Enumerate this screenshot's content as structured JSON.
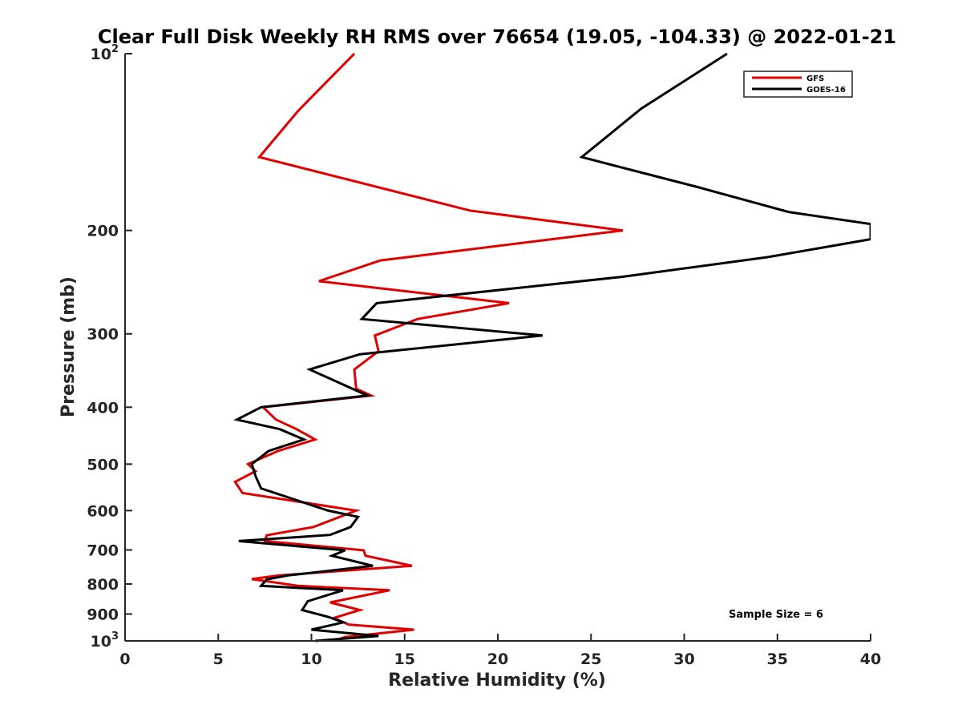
{
  "chart_data": {
    "type": "line",
    "title": "Clear Full Disk Weekly RH RMS over 76654 (19.05, -104.33) @ 2022-01-21",
    "xlabel": "Relative Humidity (%)",
    "ylabel": "Pressure (mb)",
    "xlim": [
      0,
      40
    ],
    "ylim": [
      100,
      1000
    ],
    "yscale": "log",
    "y_reversed": true,
    "xticks": [
      0,
      5,
      10,
      15,
      20,
      25,
      30,
      35,
      40
    ],
    "xtick_labels": [
      "0",
      "5",
      "10",
      "15",
      "20",
      "25",
      "30",
      "35",
      "40"
    ],
    "yticks": [
      {
        "value": 100,
        "base": "10",
        "exp": "2"
      },
      {
        "value": 200,
        "label": "200"
      },
      {
        "value": 300,
        "label": "300"
      },
      {
        "value": 400,
        "label": "400"
      },
      {
        "value": 500,
        "label": "500"
      },
      {
        "value": 600,
        "label": "600"
      },
      {
        "value": 700,
        "label": "700"
      },
      {
        "value": 800,
        "label": "800"
      },
      {
        "value": 900,
        "label": "900"
      },
      {
        "value": 1000,
        "base": "10",
        "exp": "3"
      }
    ],
    "legend_position": "top-right",
    "annotation": "Sample Size = 6",
    "series": [
      {
        "name": "GFS",
        "color": "#e00000",
        "points": [
          [
            12.3,
            100
          ],
          [
            9.3,
            125
          ],
          [
            7.2,
            150
          ],
          [
            18.5,
            185
          ],
          [
            26.7,
            200
          ],
          [
            13.7,
            225
          ],
          [
            10.4,
            244
          ],
          [
            20.6,
            266
          ],
          [
            15.7,
            283
          ],
          [
            13.4,
            302
          ],
          [
            13.6,
            321
          ],
          [
            12.3,
            345
          ],
          [
            12.4,
            372
          ],
          [
            13.2,
            382
          ],
          [
            7.4,
            400
          ],
          [
            8.1,
            420
          ],
          [
            9.2,
            436
          ],
          [
            10.2,
            454
          ],
          [
            8.2,
            475
          ],
          [
            6.6,
            500
          ],
          [
            7.0,
            514
          ],
          [
            5.9,
            536
          ],
          [
            6.3,
            560
          ],
          [
            12.4,
            600
          ],
          [
            10.1,
            640
          ],
          [
            7.6,
            661
          ],
          [
            7.5,
            676
          ],
          [
            12.8,
            701
          ],
          [
            12.9,
            716
          ],
          [
            15.4,
            745
          ],
          [
            8.2,
            774
          ],
          [
            6.8,
            785
          ],
          [
            9.3,
            806
          ],
          [
            14.2,
            820
          ],
          [
            11.0,
            860
          ],
          [
            12.6,
            886
          ],
          [
            11.2,
            914
          ],
          [
            12.0,
            938
          ],
          [
            15.5,
            957
          ],
          [
            11.8,
            985
          ],
          [
            11.2,
            1000
          ]
        ]
      },
      {
        "name": "GOES-16",
        "color": "#000000",
        "points": [
          [
            32.3,
            100
          ],
          [
            27.7,
            124
          ],
          [
            24.5,
            150
          ],
          [
            30.8,
            169
          ],
          [
            35.6,
            186
          ],
          [
            40.0,
            195
          ],
          [
            40.0,
            207
          ],
          [
            34.5,
            222
          ],
          [
            26.6,
            240
          ],
          [
            13.5,
            266
          ],
          [
            12.7,
            283
          ],
          [
            22.4,
            302
          ],
          [
            12.6,
            325
          ],
          [
            9.9,
            345
          ],
          [
            12.2,
            372
          ],
          [
            13.0,
            382
          ],
          [
            7.3,
            400
          ],
          [
            6.0,
            420
          ],
          [
            8.3,
            436
          ],
          [
            9.6,
            454
          ],
          [
            7.7,
            475
          ],
          [
            6.8,
            500
          ],
          [
            7.0,
            524
          ],
          [
            7.3,
            550
          ],
          [
            10.9,
            600
          ],
          [
            12.5,
            615
          ],
          [
            12.1,
            640
          ],
          [
            11.0,
            660
          ],
          [
            6.1,
            676
          ],
          [
            11.8,
            701
          ],
          [
            11.1,
            716
          ],
          [
            13.3,
            745
          ],
          [
            8.7,
            774
          ],
          [
            7.6,
            786
          ],
          [
            7.3,
            806
          ],
          [
            11.7,
            820
          ],
          [
            9.8,
            856
          ],
          [
            9.5,
            886
          ],
          [
            10.9,
            910
          ],
          [
            11.7,
            930
          ],
          [
            10.0,
            957
          ],
          [
            13.6,
            981
          ],
          [
            10.2,
            1000
          ]
        ]
      }
    ]
  }
}
